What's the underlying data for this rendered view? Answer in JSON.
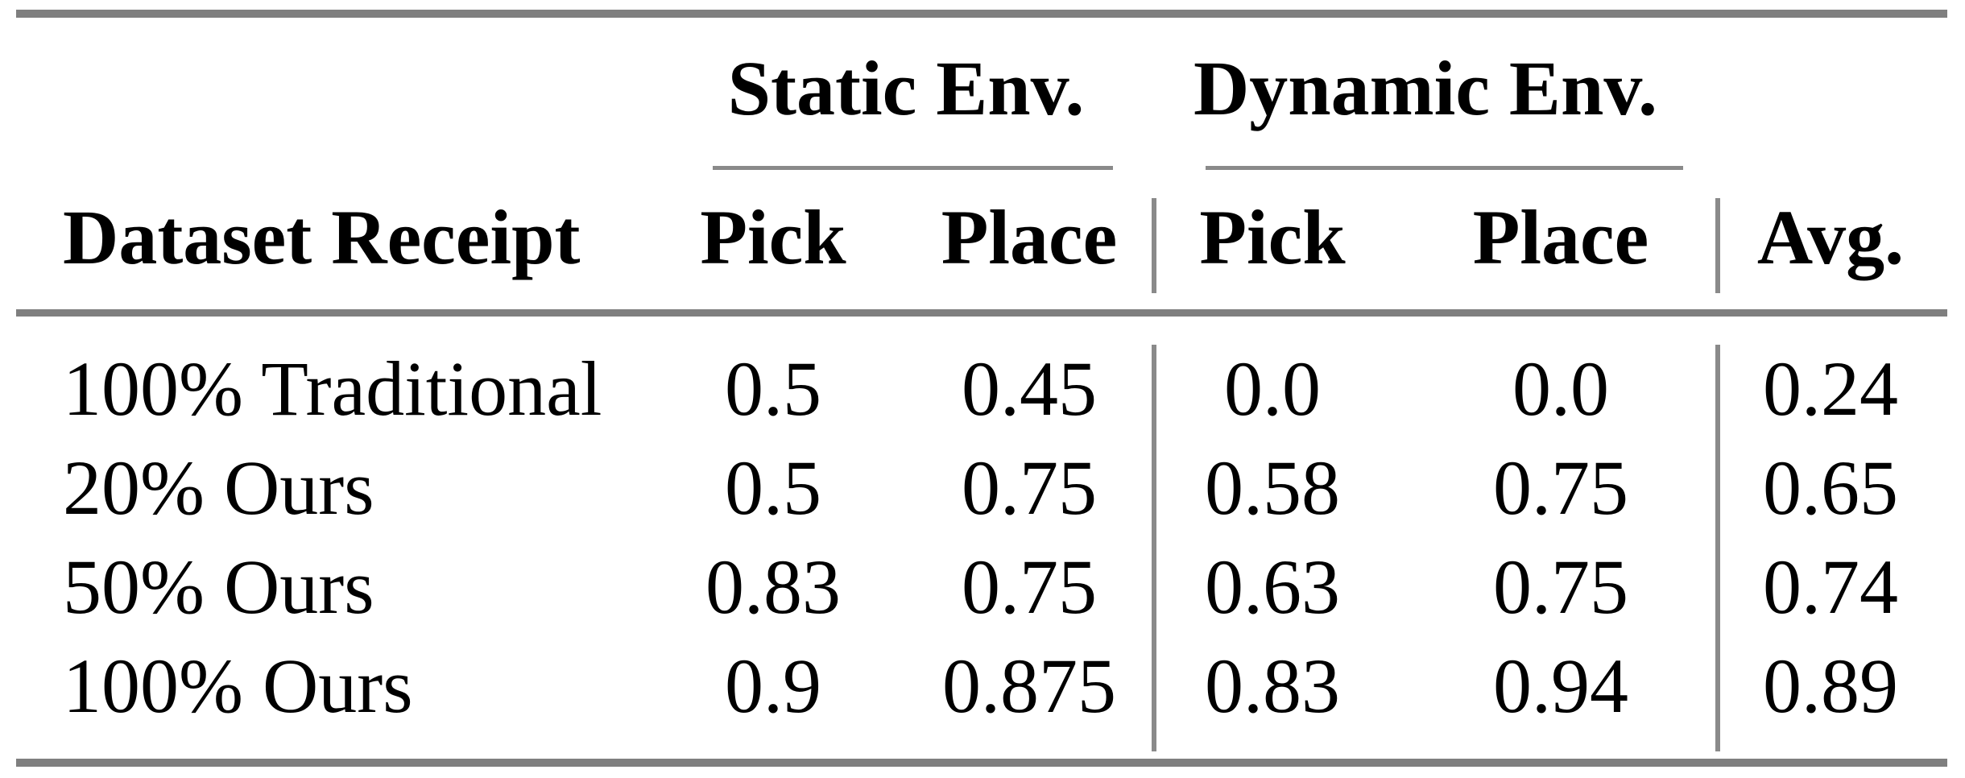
{
  "table": {
    "title_semantics": "Pick-and-place success rates in static and dynamic environments",
    "col_groups": {
      "static": "Static Env.",
      "dynamic": "Dynamic Env."
    },
    "headers": {
      "row_label": "Dataset Receipt",
      "static_pick": "Pick",
      "static_place": "Place",
      "dynamic_pick": "Pick",
      "dynamic_place": "Place",
      "avg": "Avg."
    },
    "rows": [
      {
        "label": "100% Traditional",
        "values": [
          "0.5",
          "0.45",
          "0.0",
          "0.0",
          "0.24"
        ]
      },
      {
        "label": "20% Ours",
        "values": [
          "0.5",
          "0.75",
          "0.58",
          "0.75",
          "0.65"
        ]
      },
      {
        "label": "50% Ours",
        "values": [
          "0.83",
          "0.75",
          "0.63",
          "0.75",
          "0.74"
        ]
      },
      {
        "label": "100% Ours",
        "values": [
          "0.9",
          "0.875",
          "0.83",
          "0.94",
          "0.89"
        ]
      }
    ]
  },
  "theme": {
    "rule_thick": "#7f7f7f",
    "rule_thin": "#8a8a8a",
    "text": "#000000",
    "background": "#ffffff"
  }
}
